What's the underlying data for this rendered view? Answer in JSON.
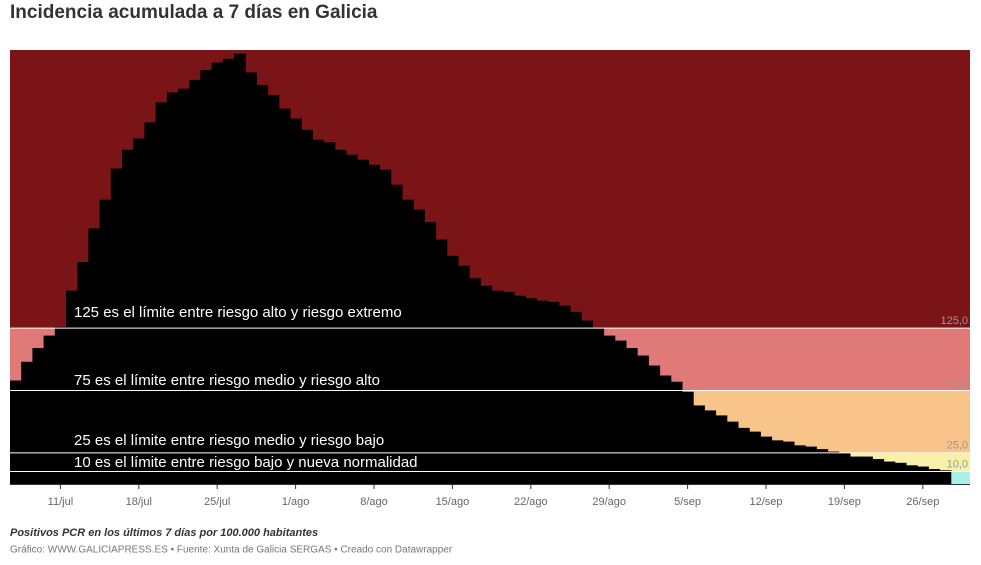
{
  "chart_data": {
    "type": "step-area",
    "title": "Incidencia acumulada a 7 días en Galicia",
    "subtitle": "Positivos PCR en los últimos 7 días por 100.000 habitantes",
    "source": "Gráfico: WWW.GALICIAPRESS.ES • Fuente: Xunta de Galicia SERGAS • Creado con Datawrapper",
    "categories": [
      null,
      null,
      null,
      null,
      "11/jul",
      null,
      null,
      null,
      null,
      null,
      null,
      "18/jul",
      null,
      null,
      null,
      null,
      null,
      null,
      "25/jul",
      null,
      null,
      null,
      null,
      null,
      null,
      "1/ago",
      null,
      null,
      null,
      null,
      null,
      null,
      "8/ago",
      null,
      null,
      null,
      null,
      null,
      null,
      "15/ago",
      null,
      null,
      null,
      null,
      null,
      null,
      "22/ago",
      null,
      null,
      null,
      null,
      null,
      null,
      "29/ago",
      null,
      null,
      null,
      null,
      null,
      null,
      "5/sep",
      null,
      null,
      null,
      null,
      null,
      null,
      "12/sep",
      null,
      null,
      null,
      null,
      null,
      null,
      "19/sep",
      null,
      null,
      null,
      null,
      null,
      null,
      "26/sep",
      null,
      null
    ],
    "values": [
      83,
      98,
      109,
      119,
      126,
      155,
      178,
      205,
      228,
      253,
      268,
      277,
      290,
      306,
      314,
      317,
      324,
      332,
      338,
      341,
      345,
      330,
      320,
      312,
      301,
      293,
      284,
      276,
      274,
      268,
      264,
      260,
      256,
      252,
      240,
      228,
      220,
      210,
      196,
      183,
      175,
      165,
      159,
      155,
      154,
      151,
      149,
      147,
      146,
      143,
      138,
      131,
      125,
      119,
      115,
      109,
      103,
      95,
      87,
      82,
      74,
      63,
      59,
      55,
      50,
      45,
      42,
      38,
      35,
      34,
      31,
      30,
      28,
      26,
      25,
      22,
      22,
      20,
      18,
      17,
      15,
      14,
      12,
      11
    ],
    "color": "#000000",
    "ylim": [
      0,
      348
    ],
    "yticks": [
      {
        "value": 10,
        "label": "10,0"
      },
      {
        "value": 25,
        "label": "25,0"
      },
      {
        "value": 75,
        "label": "75,0"
      },
      {
        "value": 125,
        "label": "125,0"
      }
    ],
    "band_colors": [
      "#a8f0ee",
      "#f8f0a8",
      "#f8c48a",
      "#e07a78",
      "#7a1416"
    ],
    "annotations": [
      "125 es el límite entre riesgo alto y riesgo extremo",
      "75 es el límite entre riesgo medio y riesgo alto",
      "25 es el límite entre riesgo medio y riesgo bajo",
      "10 es el límite entre riesgo bajo y nueva normalidad"
    ]
  }
}
